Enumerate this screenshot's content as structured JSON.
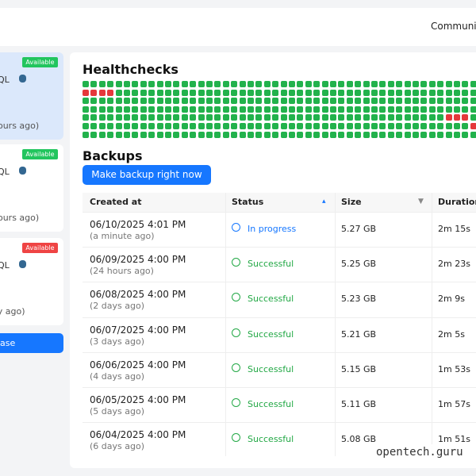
{
  "topbar": {
    "link": "Community"
  },
  "sidebar": {
    "cards": [
      {
        "badge": "Available",
        "name": "SQL",
        "time": "hours ago)"
      },
      {
        "badge": "Available",
        "name": "SQL",
        "time": "hours ago)"
      },
      {
        "badge": "Available",
        "name": "SQL",
        "time": "ay ago)"
      }
    ],
    "button": "ase"
  },
  "main": {
    "healthchecks_title": "Healthchecks",
    "backups_title": "Backups",
    "button": "Make backup right now",
    "table": {
      "headers": [
        "Created at",
        "Status",
        "Size",
        "Duration"
      ],
      "rows": [
        [
          "06/10/2025 4:01 PM",
          "(a minute ago)",
          "In progress",
          "5.27 GB",
          "2m 15s"
        ],
        [
          "06/09/2025 4:00 PM",
          "(24 hours ago)",
          "Successful",
          "5.25 GB",
          "2m 23s"
        ],
        [
          "06/08/2025 4:00 PM",
          "(2 days ago)",
          "Successful",
          "5.23 GB",
          "2m 9s"
        ],
        [
          "06/07/2025 4:00 PM",
          "(3 days ago)",
          "Successful",
          "5.21 GB",
          "2m 5s"
        ],
        [
          "06/06/2025 4:00 PM",
          "(4 days ago)",
          "Successful",
          "5.15 GB",
          "1m 53s"
        ],
        [
          "06/05/2025 4:00 PM",
          "(5 days ago)",
          "Successful",
          "5.11 GB",
          "1m 57s"
        ],
        [
          "06/04/2025 4:00 PM",
          "(6 days ago)",
          "Successful",
          "5.08 GB",
          "1m 51s"
        ]
      ]
    }
  },
  "watermark": "opentech.guru"
}
